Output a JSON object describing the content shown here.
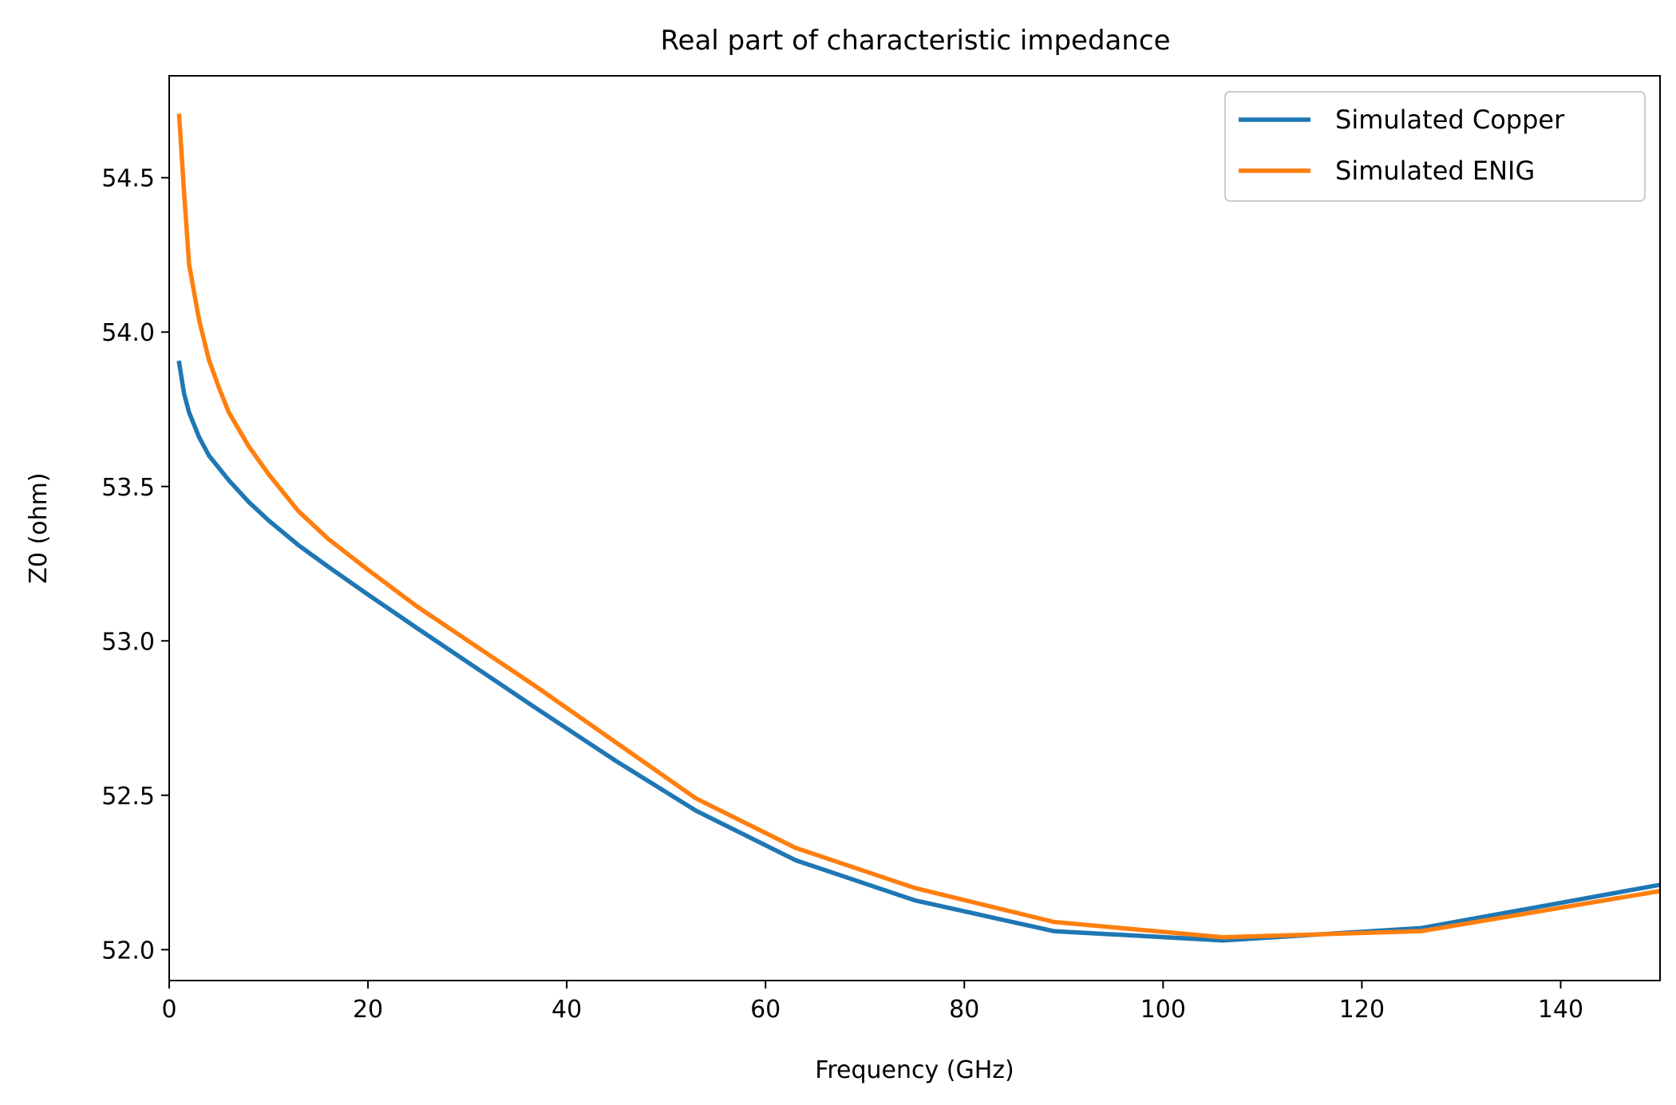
{
  "chart_data": {
    "type": "line",
    "title": "Real part of characteristic impedance",
    "xlabel": "Frequency (GHz)",
    "ylabel": "Z0 (ohm)",
    "xlim": [
      0,
      150
    ],
    "ylim": [
      51.9,
      54.83
    ],
    "xticks": [
      0,
      20,
      40,
      60,
      80,
      100,
      120,
      140
    ],
    "xtick_labels": [
      "0",
      "20",
      "40",
      "60",
      "80",
      "100",
      "120",
      "140"
    ],
    "yticks": [
      52.0,
      52.5,
      53.0,
      53.5,
      54.0,
      54.5
    ],
    "ytick_labels": [
      "52.0",
      "52.5",
      "53.0",
      "53.5",
      "54.0",
      "54.5"
    ],
    "grid": false,
    "legend_position": "top-right",
    "series": [
      {
        "name": "Simulated Copper",
        "color": "#1f77b4",
        "x": [
          1,
          1.5,
          2,
          3,
          4,
          5,
          6,
          8,
          10,
          13,
          16,
          20,
          25,
          31,
          37,
          45,
          53,
          63,
          75,
          89,
          106,
          126,
          150
        ],
        "y": [
          53.9,
          53.8,
          53.74,
          53.66,
          53.6,
          53.56,
          53.52,
          53.45,
          53.39,
          53.31,
          53.24,
          53.15,
          53.04,
          52.91,
          52.78,
          52.61,
          52.45,
          52.29,
          52.16,
          52.06,
          52.03,
          52.07,
          52.21
        ]
      },
      {
        "name": "Simulated ENIG",
        "color": "#ff7f0e",
        "x": [
          1,
          1.5,
          2,
          3,
          4,
          5,
          6,
          8,
          10,
          13,
          16,
          20,
          25,
          31,
          37,
          45,
          53,
          63,
          75,
          89,
          106,
          126,
          150
        ],
        "y": [
          54.7,
          54.45,
          54.22,
          54.04,
          53.91,
          53.82,
          53.74,
          53.63,
          53.54,
          53.42,
          53.33,
          53.23,
          53.11,
          52.98,
          52.85,
          52.67,
          52.49,
          52.33,
          52.2,
          52.09,
          52.04,
          52.06,
          52.19
        ]
      }
    ]
  }
}
